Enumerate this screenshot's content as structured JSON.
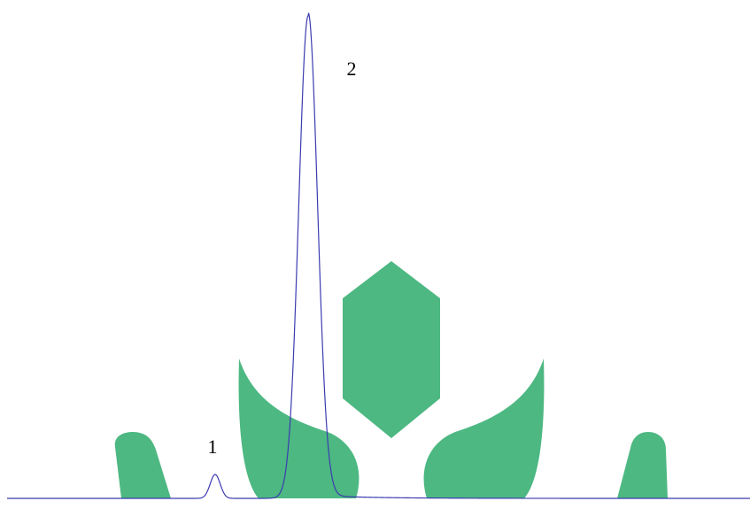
{
  "peaks": [
    {
      "label": "1"
    },
    {
      "label": "2"
    }
  ]
}
